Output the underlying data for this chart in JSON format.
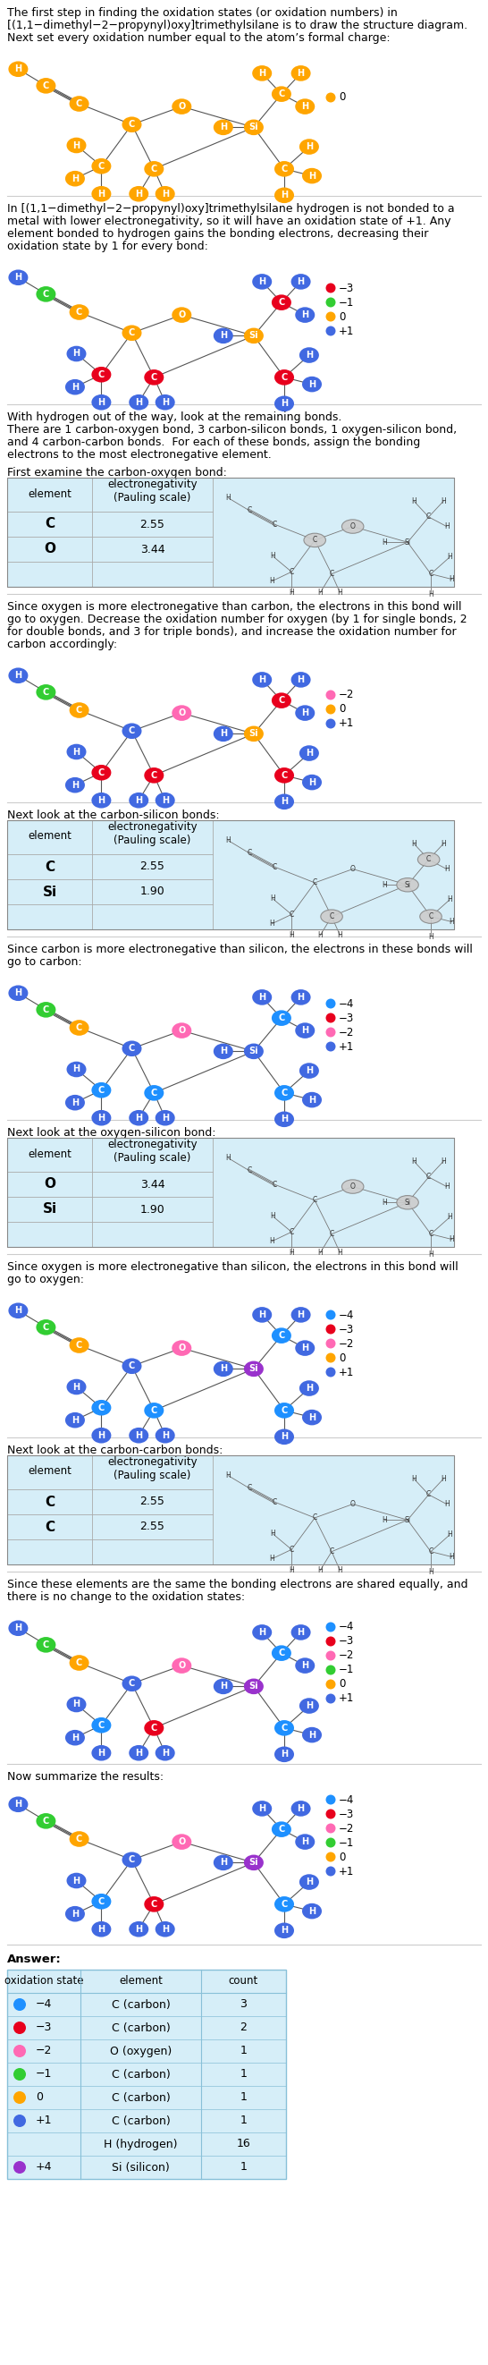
{
  "bg_color": "#ffffff",
  "table_bg": "#d6eef8",
  "divider_color": "#cccccc",
  "orange": "#ffa500",
  "blue": "#4169e1",
  "red": "#e8001d",
  "green": "#32cd32",
  "pink": "#ff69b4",
  "darkblue": "#1e90ff",
  "purple": "#9932cc",
  "gray": "#888888",
  "sections": [
    {
      "text_lines": [
        "The first step in finding the oxidation states (or oxidation numbers) in",
        "[(1,1−dimethyl−2−propynyl)oxy]trimethylsilane is to draw the structure diagram.",
        "Next set every oxidation number equal to the atom’s formal charge:"
      ],
      "mol_colors": {
        "H": "#ffa500",
        "C": "#ffa500",
        "O": "#ffa500",
        "Si": "#ffa500"
      },
      "legend": [
        [
          "#ffa500",
          "0"
        ]
      ],
      "has_table": false
    },
    {
      "text_lines": [
        "In [(1,1−dimethyl−2−propynyl)oxy]trimethylsilane hydrogen is not bonded to a",
        "metal with lower electronegativity, so it will have an oxidation state of +1. Any",
        "element bonded to hydrogen gains the bonding electrons, decreasing their",
        "oxidation state by 1 for every bond:"
      ],
      "mol_colors": {
        "H": "#4169e1",
        "C_a": "#32cd32",
        "C_b": "#ffa500",
        "C_c": "#ffa500",
        "C_d": "#e8001d",
        "C_e": "#e8001d",
        "C_t": "#e8001d",
        "C_r": "#e8001d",
        "O": "#ffa500",
        "Si": "#ffa500"
      },
      "legend": [
        [
          "#e8001d",
          "−3"
        ],
        [
          "#32cd32",
          "−1"
        ],
        [
          "#ffa500",
          "0"
        ],
        [
          "#4169e1",
          "+1"
        ]
      ],
      "has_table": false
    },
    {
      "text_lines": [
        "With hydrogen out of the way, look at the remaining bonds.",
        "There are 1 carbon-oxygen bond, 3 carbon-silicon bonds, 1 oxygen-silicon bond,",
        "and 4 carbon-carbon bonds.  For each of these bonds, assign the bonding",
        "electrons to the most electronegative element."
      ],
      "has_table": false,
      "no_mol": true
    },
    {
      "text_lines": [
        "First examine the carbon-oxygen bond:"
      ],
      "table_rows": [
        [
          "C",
          "2.55"
        ],
        [
          "O",
          "3.44"
        ]
      ],
      "table_mol_colors": {
        "H_text": "H",
        "C_text": "C",
        "O_text": "O",
        "Si_text": "Si"
      },
      "mol_colors_in_table": {
        "H": "#888888",
        "C": "#888888",
        "O": "#888888",
        "Si": "#888888",
        "C_c": "#aaaaaa",
        "O_special": "#888888"
      },
      "note_lines": [
        "Since oxygen is more electronegative than carbon, the electrons in this bond will",
        "go to oxygen. Decrease the oxidation number for oxygen (by 1 for single bonds, 2",
        "for double bonds, and 3 for triple bonds), and increase the oxidation number for",
        "carbon accordingly:"
      ],
      "mol_colors": {
        "H": "#4169e1",
        "C_a": "#32cd32",
        "C_b": "#ffa500",
        "C_c": "#4169e1",
        "C_d": "#e8001d",
        "C_e": "#e8001d",
        "C_t": "#e8001d",
        "C_r": "#e8001d",
        "O": "#ff69b4",
        "Si": "#ffa500"
      },
      "legend": [
        [
          "#ff69b4",
          "−2"
        ],
        [
          "#ffa500",
          "0"
        ],
        [
          "#4169e1",
          "+1"
        ]
      ],
      "has_table": true,
      "table_elem1": "C",
      "table_elem2": "O",
      "val1": "2.55",
      "val2": "3.44"
    },
    {
      "text_lines": [
        "Next look at the carbon-silicon bonds:"
      ],
      "note_lines": [
        "Since carbon is more electronegative than silicon, the electrons in these bonds will",
        "go to carbon:"
      ],
      "mol_colors": {
        "H": "#4169e1",
        "C_a": "#32cd32",
        "C_b": "#ffa500",
        "C_c": "#4169e1",
        "C_d": "#1e90ff",
        "C_e": "#1e90ff",
        "C_t": "#1e90ff",
        "C_r": "#1e90ff",
        "O": "#ff69b4",
        "Si": "#4169e1"
      },
      "legend": [
        [
          "#1e90ff",
          "−4"
        ],
        [
          "#e8001d",
          "−3"
        ],
        [
          "#ff69b4",
          "−2"
        ],
        [
          "#4169e1",
          "+1"
        ]
      ],
      "has_table": true,
      "table_elem1": "C",
      "table_elem2": "Si",
      "val1": "2.55",
      "val2": "1.90"
    },
    {
      "text_lines": [
        "Next look at the oxygen-silicon bond:"
      ],
      "note_lines": [
        "Since oxygen is more electronegative than silicon, the electrons in this bond will",
        "go to oxygen:"
      ],
      "mol_colors": {
        "H": "#4169e1",
        "C_a": "#32cd32",
        "C_b": "#ffa500",
        "C_c": "#4169e1",
        "C_d": "#1e90ff",
        "C_e": "#1e90ff",
        "C_t": "#1e90ff",
        "C_r": "#1e90ff",
        "O": "#ff69b4",
        "Si": "#9932cc"
      },
      "legend": [
        [
          "#1e90ff",
          "−4"
        ],
        [
          "#e8001d",
          "−3"
        ],
        [
          "#ff69b4",
          "−2"
        ],
        [
          "#ffa500",
          "0"
        ],
        [
          "#4169e1",
          "+1"
        ]
      ],
      "has_table": true,
      "table_elem1": "O",
      "table_elem2": "Si",
      "val1": "3.44",
      "val2": "1.90"
    },
    {
      "text_lines": [
        "Next look at the carbon-carbon bonds:"
      ],
      "note_lines": [
        "Since these elements are the same the bonding electrons are shared equally, and",
        "there is no change to the oxidation states:"
      ],
      "mol_colors": {
        "H": "#4169e1",
        "C_a": "#32cd32",
        "C_b": "#ffa500",
        "C_c": "#4169e1",
        "C_d": "#1e90ff",
        "C_e": "#e8001d",
        "C_t": "#1e90ff",
        "C_r": "#1e90ff",
        "O": "#ff69b4",
        "Si": "#9932cc"
      },
      "legend": [
        [
          "#1e90ff",
          "−4"
        ],
        [
          "#e8001d",
          "−3"
        ],
        [
          "#ff69b4",
          "−2"
        ],
        [
          "#32cd32",
          "−1"
        ],
        [
          "#ffa500",
          "0"
        ],
        [
          "#4169e1",
          "+1"
        ]
      ],
      "has_table": true,
      "table_elem1": "C",
      "table_elem2": "C",
      "val1": "2.55",
      "val2": "2.55"
    },
    {
      "text_lines": [
        "Now summarize the results:"
      ],
      "mol_colors": {
        "H": "#4169e1",
        "C_a": "#32cd32",
        "C_b": "#ffa500",
        "C_c": "#4169e1",
        "C_d": "#1e90ff",
        "C_e": "#e8001d",
        "C_t": "#1e90ff",
        "C_r": "#1e90ff",
        "O": "#ff69b4",
        "Si": "#9932cc"
      },
      "legend": [
        [
          "#1e90ff",
          "−4"
        ],
        [
          "#e8001d",
          "−3"
        ],
        [
          "#ff69b4",
          "−2"
        ],
        [
          "#32cd32",
          "−1"
        ],
        [
          "#ffa500",
          "0"
        ],
        [
          "#4169e1",
          "+1"
        ]
      ],
      "has_table": false
    }
  ],
  "answer_rows": [
    {
      "dot_color": "#1e90ff",
      "state": "−4",
      "element": "C (carbon)",
      "count": "3"
    },
    {
      "dot_color": "#e8001d",
      "state": "−3",
      "element": "C (carbon)",
      "count": "2"
    },
    {
      "dot_color": "#ff69b4",
      "state": "−2",
      "element": "O (oxygen)",
      "count": "1"
    },
    {
      "dot_color": "#32cd32",
      "state": "−1",
      "element": "C (carbon)",
      "count": "1"
    },
    {
      "dot_color": "#ffa500",
      "state": "0",
      "element": "C (carbon)",
      "count": "1"
    },
    {
      "dot_color": "#4169e1",
      "state": "+1",
      "element": "C (carbon)",
      "count": "1"
    },
    {
      "dot_color": null,
      "state": "",
      "element": "H (hydrogen)",
      "count": "16"
    },
    {
      "dot_color": "#9932cc",
      "state": "+4",
      "element": "Si (silicon)",
      "count": "1"
    }
  ]
}
